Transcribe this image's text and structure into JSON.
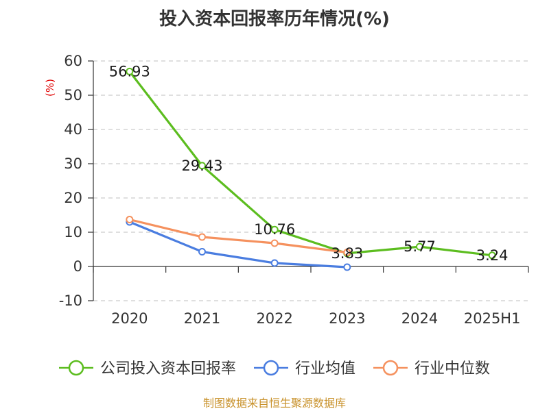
{
  "chart_data": {
    "type": "line",
    "title": "投入资本回报率历年情况(%)",
    "ylabel": "(%)",
    "categories": [
      "2020",
      "2021",
      "2022",
      "2023",
      "2024",
      "2025H1"
    ],
    "ylim": [
      -10,
      60
    ],
    "yticks": [
      -10,
      0,
      10,
      20,
      30,
      40,
      50,
      60
    ],
    "grid": true,
    "legend_position": "bottom",
    "series": [
      {
        "name": "公司投入资本回报率",
        "color": "#5cbd1f",
        "values": [
          56.93,
          29.43,
          10.76,
          3.83,
          5.77,
          3.24
        ],
        "labels": [
          "56.93",
          "29.43",
          "10.76",
          "3.83",
          "5.77",
          "3.24"
        ]
      },
      {
        "name": "行业均值",
        "color": "#4a7de0",
        "values": [
          13.0,
          4.3,
          1.0,
          -0.2,
          null,
          null
        ]
      },
      {
        "name": "行业中位数",
        "color": "#f5915e",
        "values": [
          13.7,
          8.6,
          6.8,
          4.1,
          null,
          null
        ]
      }
    ],
    "source": "制图数据来自恒生聚源数据库"
  }
}
